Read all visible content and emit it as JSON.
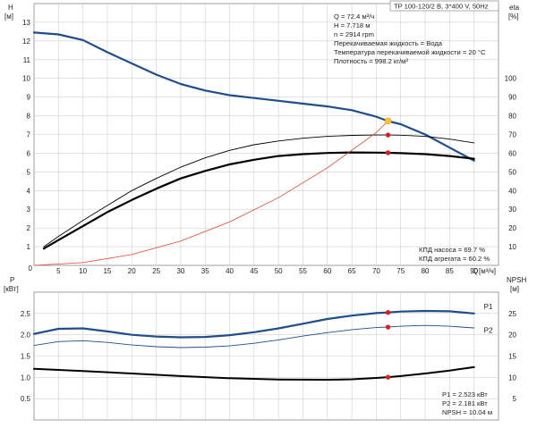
{
  "title": "TP 100-120/2 B, 3*400 V, 50Hz",
  "info": [
    "Q = 72.4 м³/ч",
    "H = 7.718 м",
    "n = 2914 rpm",
    "Перекачиваемая жидкость = Вода",
    "Температура перекачиваемой жидкости = 20 °C",
    "Плотность = 998.2 кг/м³"
  ],
  "eff_info": [
    "КПД насоса = 69.7 %",
    "КПД агрегата = 60.2 %"
  ],
  "power_info": [
    "P1 = 2.523 кВт",
    "P2 = 2.181 кВт",
    "NPSH = 10.04 м"
  ],
  "axis_labels": {
    "h_title": "H",
    "h_unit": "[м]",
    "eta_title": "eta",
    "eta_unit": "[%]",
    "q_title": "Q",
    "q_unit": "[м³/ч]",
    "p_title": "P",
    "p_unit": "[кВт]",
    "npsh_title": "NPSH",
    "npsh_unit": "[м]"
  },
  "chart_data": [
    {
      "type": "line",
      "name": "head-efficiency",
      "xlim": [
        0,
        95
      ],
      "xticks": [
        5,
        10,
        15,
        20,
        25,
        30,
        35,
        40,
        45,
        50,
        55,
        60,
        65,
        70,
        75,
        80,
        85,
        90
      ],
      "ylim_left": [
        0,
        14
      ],
      "yticks_left": [
        1,
        2,
        3,
        4,
        5,
        6,
        7,
        8,
        9,
        10,
        11,
        12,
        13
      ],
      "ylim_right": [
        0,
        140
      ],
      "yticks_right": [
        10,
        20,
        30,
        40,
        50,
        60,
        70,
        80,
        90,
        100
      ],
      "grid": true,
      "series": [
        {
          "name": "H",
          "axis": "left",
          "color": "#1f4e8c",
          "width": 2.2,
          "x": [
            0,
            5,
            10,
            15,
            20,
            25,
            30,
            35,
            40,
            45,
            50,
            55,
            60,
            65,
            70,
            72.4,
            75,
            80,
            85,
            90
          ],
          "y": [
            12.45,
            12.35,
            12.05,
            11.4,
            10.8,
            10.2,
            9.7,
            9.35,
            9.1,
            8.95,
            8.8,
            8.65,
            8.5,
            8.3,
            7.95,
            7.718,
            7.55,
            7.0,
            6.3,
            5.6
          ]
        },
        {
          "name": "КПД агрегата",
          "axis": "right",
          "color": "#000000",
          "width": 2.2,
          "x": [
            2,
            5,
            10,
            15,
            20,
            25,
            30,
            35,
            40,
            45,
            50,
            55,
            60,
            65,
            70,
            72.4,
            75,
            80,
            85,
            90
          ],
          "y": [
            9,
            13.5,
            21,
            28.5,
            35,
            41,
            46.5,
            50.5,
            54,
            56.5,
            58.5,
            59.5,
            60.1,
            60.4,
            60.3,
            60.2,
            60,
            59.5,
            58.5,
            57
          ]
        },
        {
          "name": "КПД насоса",
          "axis": "right",
          "color": "#000000",
          "width": 0.9,
          "x": [
            2,
            5,
            10,
            15,
            20,
            25,
            30,
            35,
            40,
            45,
            50,
            55,
            60,
            65,
            70,
            72.4,
            75,
            80,
            85,
            90
          ],
          "y": [
            10,
            15.5,
            24,
            32,
            40,
            46.5,
            52.5,
            57.5,
            61.5,
            64.5,
            66.5,
            68,
            69,
            69.5,
            69.7,
            69.7,
            69.6,
            69,
            67.5,
            65.5
          ]
        },
        {
          "name": "system",
          "axis": "left",
          "color": "#e8432f",
          "width": 0.8,
          "x": [
            0,
            10,
            20,
            30,
            40,
            50,
            60,
            70,
            72.4
          ],
          "y": [
            0,
            0.15,
            0.58,
            1.3,
            2.32,
            3.62,
            5.22,
            7.1,
            7.718
          ]
        }
      ],
      "markers": [
        {
          "x": 72.4,
          "y": 7.718,
          "axis": "left",
          "color": "#f5c231"
        },
        {
          "x": 72.4,
          "y": 69.7,
          "axis": "right",
          "color": "#e51b1b"
        },
        {
          "x": 72.4,
          "y": 60.2,
          "axis": "right",
          "color": "#e51b1b"
        }
      ]
    },
    {
      "type": "line",
      "name": "power-npsh",
      "xlim": [
        0,
        95
      ],
      "ylim_left": [
        0,
        3.0
      ],
      "yticks_left": [
        0.5,
        1.0,
        1.5,
        2.0,
        2.5
      ],
      "ylim_right": [
        0,
        30
      ],
      "yticks_right": [
        5,
        10,
        15,
        20,
        25
      ],
      "grid": true,
      "series": [
        {
          "name": "P1",
          "axis": "left",
          "color": "#1f4e8c",
          "width": 2.2,
          "x": [
            0,
            5,
            10,
            15,
            20,
            25,
            30,
            35,
            40,
            45,
            50,
            55,
            60,
            65,
            70,
            72.4,
            75,
            80,
            85,
            90
          ],
          "y": [
            2.02,
            2.14,
            2.15,
            2.08,
            2.0,
            1.96,
            1.94,
            1.95,
            1.99,
            2.06,
            2.15,
            2.26,
            2.37,
            2.45,
            2.51,
            2.523,
            2.545,
            2.56,
            2.55,
            2.5
          ]
        },
        {
          "name": "P2",
          "axis": "left",
          "color": "#1f4e8c",
          "width": 0.9,
          "x": [
            0,
            5,
            10,
            15,
            20,
            25,
            30,
            35,
            40,
            45,
            50,
            55,
            60,
            65,
            70,
            72.4,
            75,
            80,
            85,
            90
          ],
          "y": [
            1.75,
            1.84,
            1.86,
            1.82,
            1.76,
            1.72,
            1.7,
            1.71,
            1.74,
            1.8,
            1.88,
            1.97,
            2.05,
            2.12,
            2.17,
            2.181,
            2.2,
            2.22,
            2.2,
            2.16
          ]
        },
        {
          "name": "NPSH",
          "axis": "right",
          "color": "#000000",
          "width": 2.0,
          "x": [
            0,
            10,
            20,
            30,
            40,
            50,
            60,
            65,
            70,
            72.4,
            75,
            80,
            85,
            90
          ],
          "y": [
            12.0,
            11.5,
            10.9,
            10.3,
            9.8,
            9.5,
            9.45,
            9.55,
            9.85,
            10.04,
            10.3,
            10.9,
            11.6,
            12.4
          ]
        }
      ],
      "series_labels": [
        {
          "name": "P1",
          "x": 92,
          "y": 2.6,
          "axis": "left"
        },
        {
          "name": "P2",
          "x": 92,
          "y": 2.05,
          "axis": "left"
        }
      ],
      "markers": [
        {
          "x": 72.4,
          "y": 2.523,
          "axis": "left",
          "color": "#e51b1b"
        },
        {
          "x": 72.4,
          "y": 2.181,
          "axis": "left",
          "color": "#e51b1b"
        },
        {
          "x": 72.4,
          "y": 10.04,
          "axis": "right",
          "color": "#e51b1b"
        }
      ]
    }
  ]
}
